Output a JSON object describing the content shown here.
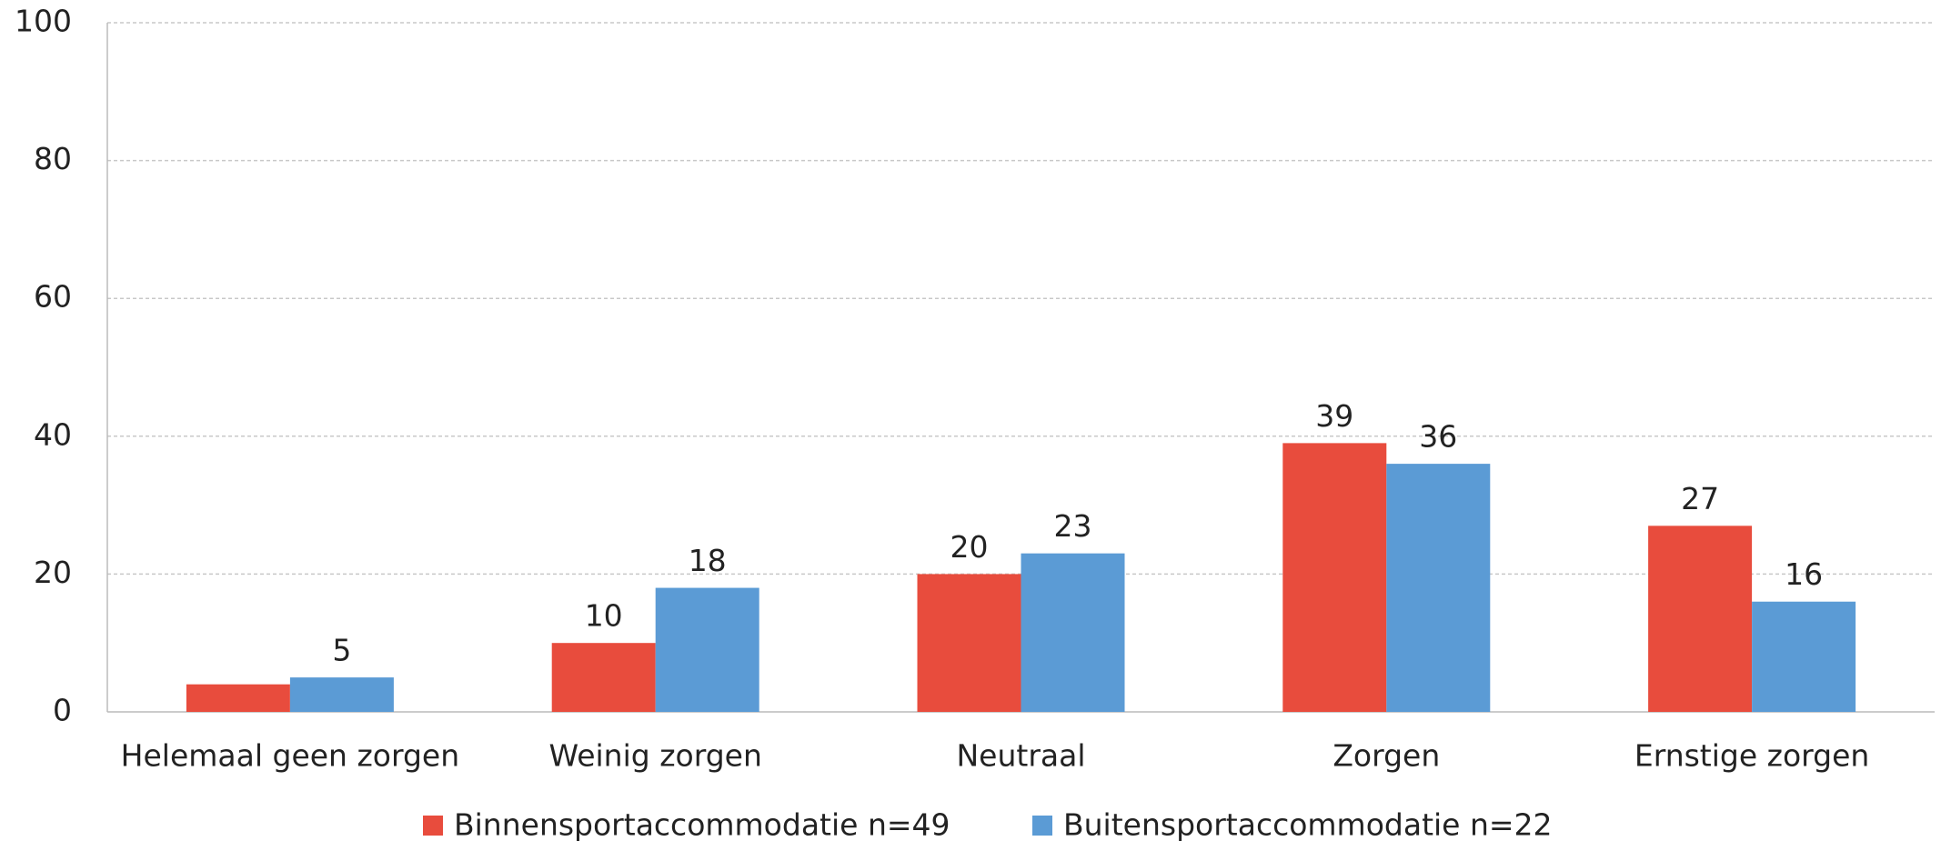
{
  "chart_data": {
    "type": "bar",
    "categories": [
      "Helemaal geen zorgen",
      "Weinig zorgen",
      "Neutraal",
      "Zorgen",
      "Ernstige zorgen"
    ],
    "series": [
      {
        "name": "Binnensportaccommodatie n=49",
        "color": "#e84c3d",
        "values": [
          4,
          10,
          20,
          39,
          27
        ],
        "value_labels": [
          null,
          "10",
          "20",
          "39",
          "27"
        ]
      },
      {
        "name": "Buitensportaccommodatie n=22",
        "color": "#5b9bd5",
        "values": [
          5,
          18,
          23,
          36,
          16
        ]
      }
    ],
    "ylim": [
      0,
      100
    ],
    "yticks": [
      0,
      20,
      40,
      60,
      80,
      100
    ],
    "grid": true,
    "legend": "bottom"
  }
}
